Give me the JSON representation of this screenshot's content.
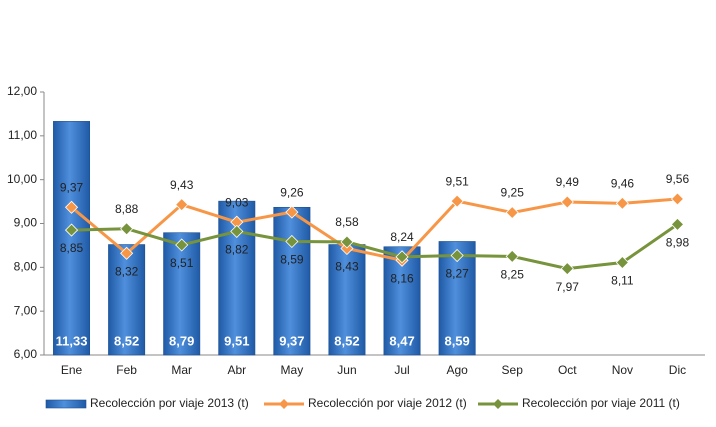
{
  "chart_data": {
    "type": "bar-line",
    "categories": [
      "Ene",
      "Feb",
      "Mar",
      "Abr",
      "May",
      "Jun",
      "Jul",
      "Ago",
      "Sep",
      "Oct",
      "Nov",
      "Dic"
    ],
    "ylim": [
      6,
      12
    ],
    "yticks": [
      {
        "value": 6,
        "label": "6,00"
      },
      {
        "value": 7,
        "label": "7,00"
      },
      {
        "value": 8,
        "label": "8,00"
      },
      {
        "value": 9,
        "label": "9,00"
      },
      {
        "value": 10,
        "label": "10,00"
      },
      {
        "value": 11,
        "label": "11,00"
      },
      {
        "value": 12,
        "label": "12,00"
      }
    ],
    "series": [
      {
        "name": "Recolección por viaje 2013 (t)",
        "type": "bar",
        "color": "#3a78c6",
        "values": [
          11.33,
          8.52,
          8.79,
          9.51,
          9.37,
          8.52,
          8.47,
          8.59,
          null,
          null,
          null,
          null
        ],
        "value_labels": [
          "11,33",
          "8,52",
          "8,79",
          "9,51",
          "9,37",
          "8,52",
          "8,47",
          "8,59",
          null,
          null,
          null,
          null
        ]
      },
      {
        "name": "Recolección por viaje 2012 (t)",
        "type": "line",
        "color": "#f79646",
        "values": [
          9.37,
          8.32,
          9.43,
          9.03,
          9.26,
          8.43,
          8.16,
          9.51,
          9.25,
          9.49,
          9.46,
          9.56
        ],
        "value_labels": [
          "9,37",
          "8,32",
          "9,43",
          "9,03",
          "9,26",
          "8,43",
          "8,16",
          "9,51",
          "9,25",
          "9,49",
          "9,46",
          "9,56"
        ]
      },
      {
        "name": "Recolección por viaje 2011 (t)",
        "type": "line",
        "color": "#77933c",
        "values": [
          8.85,
          8.88,
          8.51,
          8.82,
          8.59,
          8.58,
          8.24,
          8.27,
          8.25,
          7.97,
          8.11,
          8.98
        ],
        "value_labels": [
          "8,85",
          "8,88",
          "8,51",
          "8,82",
          "8,59",
          "8,58",
          "8,24",
          "8,27",
          "8,25",
          "7,97",
          "8,11",
          "8,98"
        ]
      }
    ]
  }
}
